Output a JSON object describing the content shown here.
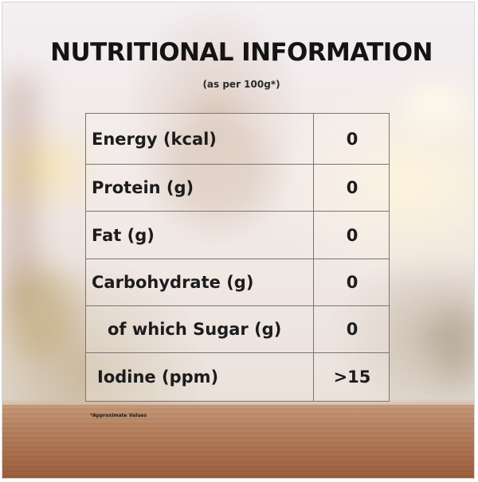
{
  "title": "NUTRITIONAL INFORMATION",
  "subtitle": "(as per 100g*)",
  "rows": [
    {
      "label": "Energy (kcal)",
      "value": "0"
    },
    {
      "label": "Protein (g)",
      "value": "0"
    },
    {
      "label": "Fat (g)",
      "value": "0"
    },
    {
      "label": "Carbohydrate (g)",
      "value": "0"
    },
    {
      "label": "of which Sugar (g)",
      "value": "0"
    },
    {
      "label": "Iodine (ppm)",
      "value": ">15"
    }
  ],
  "footnote": "*Approximate Values"
}
